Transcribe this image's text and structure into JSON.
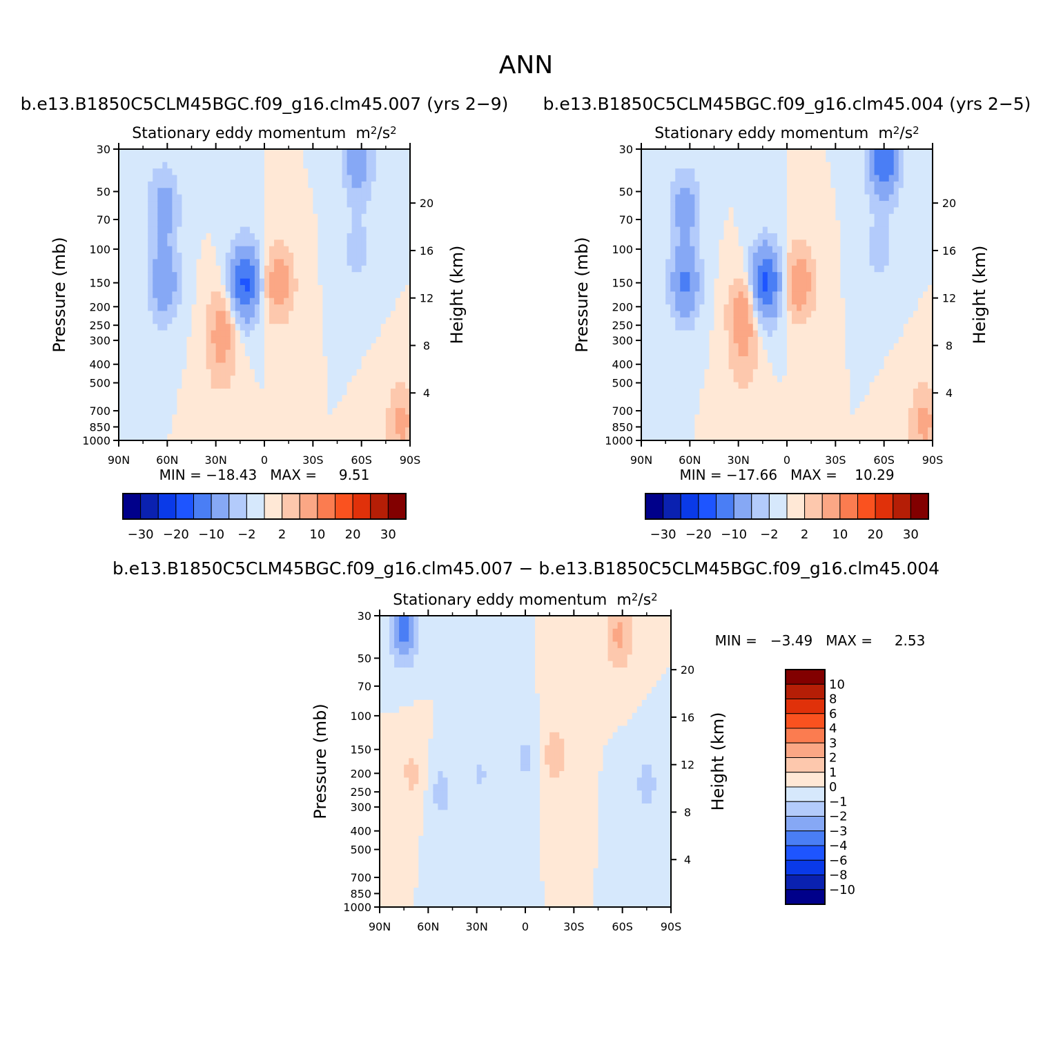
{
  "figure_title": "ANN",
  "chart_data": [
    {
      "type": "heatmap",
      "id": "panel1",
      "title": "b.e13.B1850C5CLM45BGC.f09_g16.clm45.007 (yrs 2−9)",
      "variable": "Stationary eddy momentum",
      "units_base": "m",
      "units_sup1": "2",
      "units_mid": "/s",
      "units_sup2": "2",
      "ylabel": "Pressure (mb)",
      "ylabel_right": "Height (km)",
      "x_ticks": [
        "90N",
        "60N",
        "30N",
        "0",
        "30S",
        "60S",
        "90S"
      ],
      "y_ticks": [
        "30",
        "50",
        "70",
        "100",
        "150",
        "200",
        "250",
        "300",
        "400",
        "500",
        "700",
        "850",
        "1000"
      ],
      "y_ticks_right": [
        "20",
        "16",
        "12",
        "8",
        "4"
      ],
      "stats": "MIN = −18.43   MAX =     9.51",
      "colorbar_labels": [
        "−30",
        "−20",
        "−10",
        "−2",
        "2",
        "10",
        "20",
        "30"
      ],
      "features": [
        {
          "lat": 62,
          "p": 150,
          "v": -9
        },
        {
          "lat": 62,
          "p": 60,
          "v": -7
        },
        {
          "lat": 26,
          "p": 250,
          "v": 6
        },
        {
          "lat": 27,
          "p": 400,
          "v": 3
        },
        {
          "lat": 12,
          "p": 150,
          "v": -16
        },
        {
          "lat": -9,
          "p": 150,
          "v": 8
        },
        {
          "lat": -58,
          "p": 35,
          "v": -8
        },
        {
          "lat": -57,
          "p": 100,
          "v": -3
        },
        {
          "lat": -85,
          "p": 800,
          "v": 6
        }
      ]
    },
    {
      "type": "heatmap",
      "id": "panel2",
      "title": "b.e13.B1850C5CLM45BGC.f09_g16.clm45.004 (yrs 2−5)",
      "variable": "Stationary eddy momentum",
      "units_base": "m",
      "units_sup1": "2",
      "units_mid": "/s",
      "units_sup2": "2",
      "ylabel": "Pressure (mb)",
      "ylabel_right": "Height (km)",
      "x_ticks": [
        "90N",
        "60N",
        "30N",
        "0",
        "30S",
        "60S",
        "90S"
      ],
      "y_ticks": [
        "30",
        "50",
        "70",
        "100",
        "150",
        "200",
        "250",
        "300",
        "400",
        "500",
        "700",
        "850",
        "1000"
      ],
      "y_ticks_right": [
        "20",
        "16",
        "12",
        "8",
        "4"
      ],
      "stats": "MIN = −17.66   MAX =    10.29",
      "colorbar_labels": [
        "−30",
        "−20",
        "−10",
        "−2",
        "2",
        "10",
        "20",
        "30"
      ],
      "features": [
        {
          "lat": 63,
          "p": 150,
          "v": -11
        },
        {
          "lat": 63,
          "p": 60,
          "v": -7
        },
        {
          "lat": 27,
          "p": 220,
          "v": 8
        },
        {
          "lat": 27,
          "p": 400,
          "v": 3
        },
        {
          "lat": 13,
          "p": 150,
          "v": -16
        },
        {
          "lat": -8,
          "p": 150,
          "v": 8
        },
        {
          "lat": -60,
          "p": 35,
          "v": -14
        },
        {
          "lat": -57,
          "p": 100,
          "v": -3
        },
        {
          "lat": -85,
          "p": 800,
          "v": 6
        }
      ]
    },
    {
      "type": "heatmap",
      "id": "panel3",
      "title": "b.e13.B1850C5CLM45BGC.f09_g16.clm45.007 − b.e13.B1850C5CLM45BGC.f09_g16.clm45.004",
      "variable": "Stationary eddy momentum",
      "units_base": "m",
      "units_sup1": "2",
      "units_mid": "/s",
      "units_sup2": "2",
      "ylabel": "Pressure (mb)",
      "ylabel_right": "Height (km)",
      "x_ticks": [
        "90N",
        "60N",
        "30N",
        "0",
        "30S",
        "60S",
        "90S"
      ],
      "y_ticks": [
        "30",
        "50",
        "70",
        "100",
        "150",
        "200",
        "250",
        "300",
        "400",
        "500",
        "700",
        "850",
        "1000"
      ],
      "y_ticks_right": [
        "20",
        "16",
        "12",
        "8",
        "4"
      ],
      "stats": "MIN =   −3.49   MAX =     2.53",
      "colorbar_labels": [
        "10",
        "8",
        "6",
        "4",
        "3",
        "2",
        "1",
        "0",
        "−1",
        "−2",
        "−3",
        "−4",
        "−6",
        "−8",
        "−10"
      ],
      "features": [
        {
          "lat": 75,
          "p": 35,
          "v": -3.4
        },
        {
          "lat": 70,
          "p": 200,
          "v": 1.2
        },
        {
          "lat": 52,
          "p": 250,
          "v": -1.3
        },
        {
          "lat": 28,
          "p": 200,
          "v": -1.1
        },
        {
          "lat": 0,
          "p": 170,
          "v": -1.2
        },
        {
          "lat": -18,
          "p": 160,
          "v": 1.5
        },
        {
          "lat": -58,
          "p": 38,
          "v": 2.3
        },
        {
          "lat": -75,
          "p": 230,
          "v": -1.3
        }
      ]
    }
  ],
  "colors": {
    "main_scale": [
      "#00008a",
      "#0a21b0",
      "#0a3ae8",
      "#1e55ff",
      "#4a7ef5",
      "#86a8f5",
      "#b3cbfb",
      "#d6e8fc",
      "#ffe8d6",
      "#fdc8ad",
      "#fba785",
      "#fb7c50",
      "#fa521f",
      "#e0310a",
      "#b51e06",
      "#820000"
    ],
    "diff_scale": [
      "#00008a",
      "#0a21b0",
      "#0a3ae8",
      "#1e55ff",
      "#4a7ef5",
      "#86a8f5",
      "#b3cbfb",
      "#d6e8fc",
      "#ffe8d6",
      "#fdc8ad",
      "#fba785",
      "#fb7c50",
      "#fa521f",
      "#e0310a",
      "#b51e06",
      "#820000"
    ]
  }
}
